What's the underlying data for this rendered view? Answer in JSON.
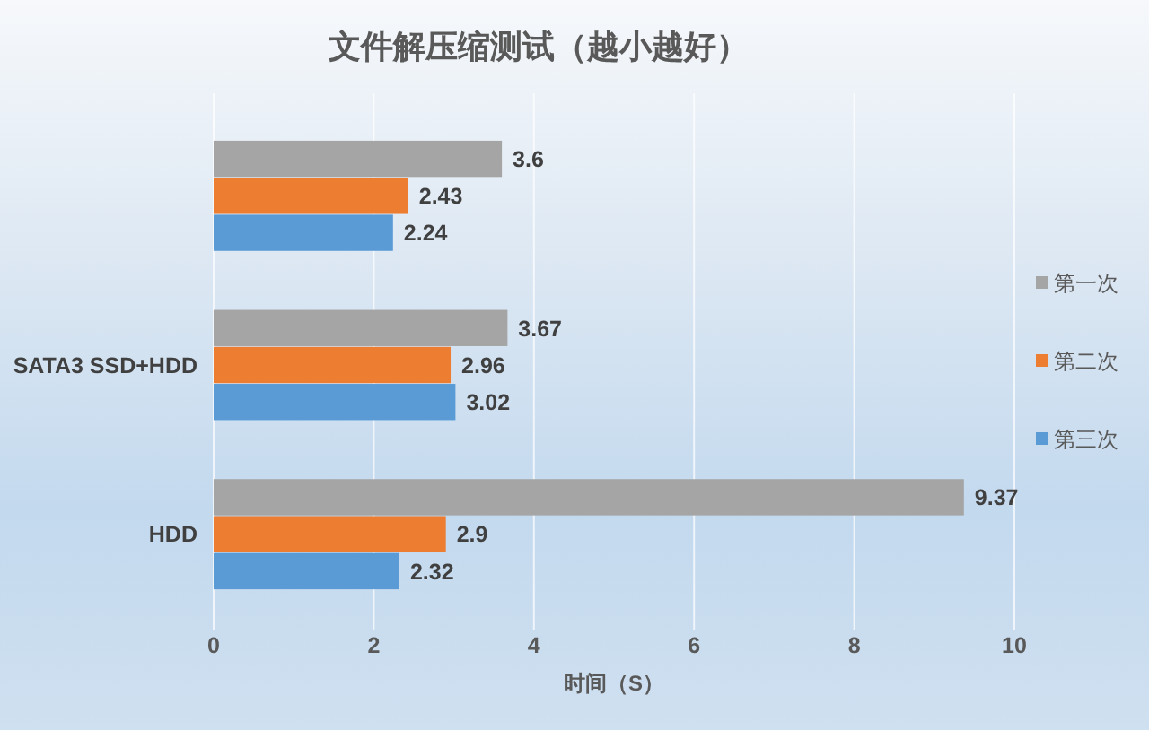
{
  "chart_data": {
    "type": "bar",
    "orientation": "horizontal",
    "title": "文件解压缩测试（越小越好）",
    "xlabel": "时间（S）",
    "categories": [
      null,
      "SATA3 SSD+HDD",
      "HDD"
    ],
    "series": [
      {
        "name": "第一次",
        "color": "#a5a5a5",
        "values": [
          3.6,
          3.67,
          9.37
        ]
      },
      {
        "name": "第二次",
        "color": "#ed7d31",
        "values": [
          2.43,
          2.96,
          2.9
        ]
      },
      {
        "name": "第三次",
        "color": "#5b9bd5",
        "values": [
          2.24,
          3.02,
          2.32
        ]
      }
    ],
    "xlim": [
      0,
      10
    ],
    "xticks": [
      0,
      2,
      4,
      6,
      8,
      10
    ],
    "grid": "x",
    "legend": "right",
    "data_labels": true
  }
}
